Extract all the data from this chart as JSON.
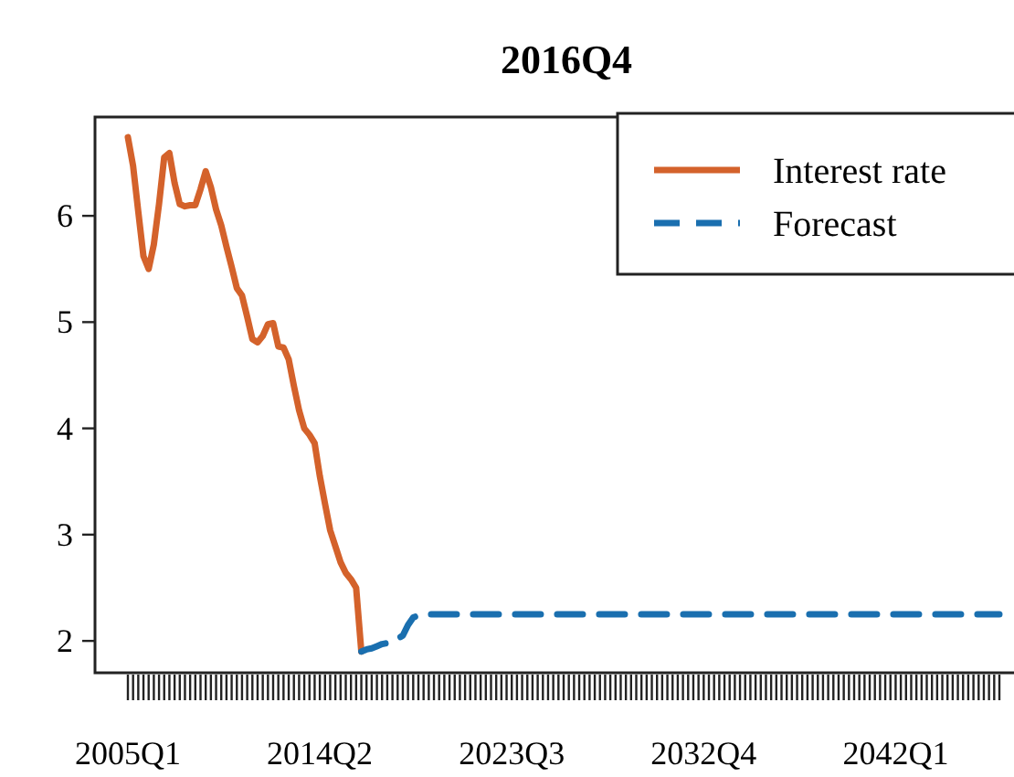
{
  "chart_data": {
    "type": "line",
    "title": "2016Q4",
    "legend": "top right",
    "categories": [
      "2005Q1",
      null,
      null,
      null,
      null,
      null,
      null,
      null,
      null,
      null,
      null,
      null,
      null,
      null,
      null,
      null,
      null,
      null,
      null,
      null,
      null,
      null,
      null,
      null,
      null,
      null,
      null,
      null,
      null,
      null,
      null,
      null,
      null,
      null,
      null,
      null,
      null,
      "2014Q2",
      null,
      null,
      null,
      null,
      null,
      null,
      null,
      null,
      null,
      null,
      null,
      null,
      null,
      null,
      null,
      null,
      null,
      null,
      null,
      null,
      null,
      null,
      null,
      null,
      null,
      null,
      null,
      null,
      null,
      null,
      null,
      null,
      null,
      null,
      null,
      null,
      "2023Q3",
      null,
      null,
      null,
      null,
      null,
      null,
      null,
      null,
      null,
      null,
      null,
      null,
      null,
      null,
      null,
      null,
      null,
      null,
      null,
      null,
      null,
      null,
      null,
      null,
      null,
      null,
      null,
      null,
      null,
      null,
      null,
      null,
      null,
      null,
      null,
      null,
      "2032Q4",
      null,
      null,
      null,
      null,
      null,
      null,
      null,
      null,
      null,
      null,
      null,
      null,
      null,
      null,
      null,
      null,
      null,
      null,
      null,
      null,
      null,
      null,
      null,
      null,
      null,
      null,
      null,
      null,
      null,
      null,
      null,
      null,
      null,
      null,
      null,
      null,
      "2042Q1",
      null,
      null,
      null,
      null,
      null,
      null,
      null,
      null,
      null,
      null,
      null,
      null,
      null,
      null,
      null,
      null,
      null,
      null,
      null,
      null
    ],
    "ylim": [
      1.7,
      6.93
    ],
    "yticks": [
      2,
      3,
      4,
      5,
      6
    ],
    "series": [
      {
        "name": "Interest rate",
        "color": "#d4622b",
        "line_style": "solid",
        "values": [
          6.74,
          6.47,
          6.04,
          5.62,
          5.5,
          5.73,
          6.11,
          6.55,
          6.59,
          6.31,
          6.11,
          6.09,
          6.1,
          6.1,
          6.25,
          6.42,
          6.27,
          6.06,
          5.91,
          5.71,
          5.52,
          5.32,
          5.25,
          5.05,
          4.84,
          4.81,
          4.87,
          4.98,
          4.99,
          4.77,
          4.76,
          4.65,
          4.4,
          4.17,
          4.0,
          3.94,
          3.86,
          3.55,
          3.29,
          3.04,
          2.89,
          2.74,
          2.64,
          2.58,
          2.5,
          1.9,
          null,
          null,
          null,
          null,
          null,
          null,
          null,
          null,
          null,
          null,
          null,
          null,
          null,
          null,
          null,
          null,
          null,
          null,
          null,
          null,
          null,
          null,
          null,
          null,
          null,
          null,
          null,
          null,
          null,
          null,
          null,
          null,
          null,
          null,
          null,
          null,
          null,
          null,
          null,
          null,
          null,
          null,
          null,
          null,
          null,
          null,
          null,
          null,
          null,
          null,
          null,
          null,
          null,
          null,
          null,
          null,
          null,
          null,
          null,
          null,
          null,
          null,
          null,
          null,
          null,
          null,
          null,
          null,
          null,
          null,
          null,
          null,
          null,
          null,
          null,
          null,
          null,
          null,
          null,
          null,
          null,
          null,
          null,
          null,
          null,
          null,
          null,
          null,
          null,
          null,
          null,
          null,
          null,
          null,
          null,
          null,
          null,
          null,
          null,
          null,
          null,
          null,
          null,
          null,
          null,
          null,
          null,
          null,
          null,
          null,
          null,
          null,
          null,
          null,
          null,
          null,
          null,
          null,
          null,
          null,
          null,
          null,
          null
        ]
      },
      {
        "name": "Forecast",
        "color": "#1a6faf",
        "line_style": "dashed",
        "values": [
          null,
          null,
          null,
          null,
          null,
          null,
          null,
          null,
          null,
          null,
          null,
          null,
          null,
          null,
          null,
          null,
          null,
          null,
          null,
          null,
          null,
          null,
          null,
          null,
          null,
          null,
          null,
          null,
          null,
          null,
          null,
          null,
          null,
          null,
          null,
          null,
          null,
          null,
          null,
          null,
          null,
          null,
          null,
          null,
          null,
          1.9,
          1.92,
          1.93,
          1.95,
          1.97,
          1.98,
          2.0,
          2.02,
          2.05,
          2.15,
          2.22,
          2.24,
          2.25,
          2.25,
          2.25,
          2.25,
          2.25,
          2.25,
          2.25,
          2.25,
          2.25,
          2.25,
          2.25,
          2.25,
          2.25,
          2.25,
          2.25,
          2.25,
          2.25,
          2.25,
          2.25,
          2.25,
          2.25,
          2.25,
          2.25,
          2.25,
          2.25,
          2.25,
          2.25,
          2.25,
          2.25,
          2.25,
          2.25,
          2.25,
          2.25,
          2.25,
          2.25,
          2.25,
          2.25,
          2.25,
          2.25,
          2.25,
          2.25,
          2.25,
          2.25,
          2.25,
          2.25,
          2.25,
          2.25,
          2.25,
          2.25,
          2.25,
          2.25,
          2.25,
          2.25,
          2.25,
          2.25,
          2.25,
          2.25,
          2.25,
          2.25,
          2.25,
          2.25,
          2.25,
          2.25,
          2.25,
          2.25,
          2.25,
          2.25,
          2.25,
          2.25,
          2.25,
          2.25,
          2.25,
          2.25,
          2.25,
          2.25,
          2.25,
          2.25,
          2.25,
          2.25,
          2.25,
          2.25,
          2.25,
          2.25,
          2.25,
          2.25,
          2.25,
          2.25,
          2.25,
          2.25,
          2.25,
          2.25,
          2.25,
          2.25,
          2.25,
          2.25,
          2.25,
          2.25,
          2.25,
          2.25,
          2.25,
          2.25,
          2.25,
          2.25,
          2.25,
          2.25,
          2.25,
          2.25,
          2.25,
          2.25,
          2.25,
          2.25,
          2.25
        ]
      }
    ]
  }
}
